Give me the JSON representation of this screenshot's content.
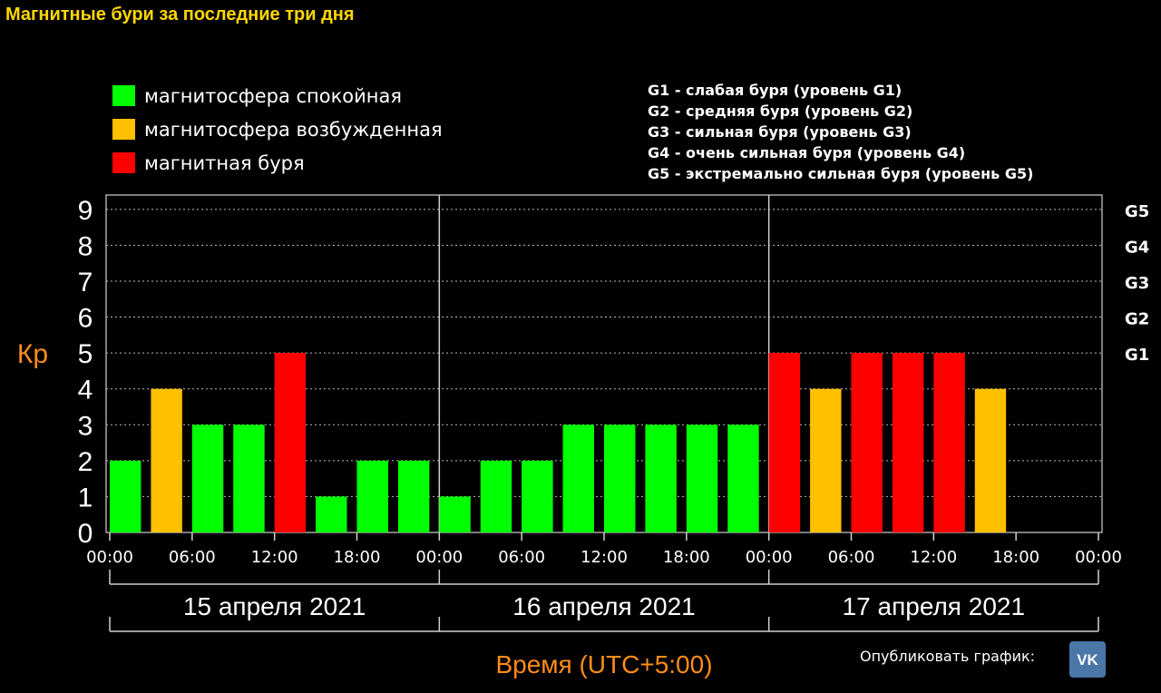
{
  "title": "Магнитные бури за последние три дня",
  "legend": [
    {
      "label": "магнитосфера спокойная",
      "color": "#00ff00"
    },
    {
      "label": "магнитосфера возбужденная",
      "color": "#ffc000"
    },
    {
      "label": "магнитная буря",
      "color": "#ff0000"
    }
  ],
  "storm_levels": [
    "G1 - слабая буря (уровень G1)",
    "G2 - средняя буря (уровень G2)",
    "G3 - сильная буря (уровень G3)",
    "G4 - очень сильная буря (уровень G4)",
    "G5 - экстремально сильная буря (уровень G5)"
  ],
  "publish": {
    "label": "Опубликовать график:",
    "icon": "vk-icon"
  },
  "chart_data": {
    "type": "bar",
    "ylabel": "Кр",
    "xlabel": "Время (UTC+5:00)",
    "ylim": [
      0,
      9
    ],
    "y_ticks": [
      "0",
      "1",
      "2",
      "3",
      "4",
      "5",
      "6",
      "7",
      "8",
      "9"
    ],
    "g_levels": [
      {
        "label": "G1",
        "kp": 5
      },
      {
        "label": "G2",
        "kp": 6
      },
      {
        "label": "G3",
        "kp": 7
      },
      {
        "label": "G4",
        "kp": 8
      },
      {
        "label": "G5",
        "kp": 9
      }
    ],
    "x_ticks": [
      "00:00",
      "06:00",
      "12:00",
      "18:00",
      "00:00",
      "06:00",
      "12:00",
      "18:00",
      "00:00",
      "06:00",
      "12:00",
      "18:00",
      "00:00"
    ],
    "days": [
      "15 апреля 2021",
      "16 апреля 2021",
      "17 апреля 2021"
    ],
    "interval_hours": 3,
    "values": [
      2,
      4,
      3,
      3,
      5,
      1,
      2,
      2,
      1,
      2,
      2,
      3,
      3,
      3,
      3,
      3,
      5,
      4,
      5,
      5,
      5,
      4
    ],
    "colors": {
      "quiet": "#00ff00",
      "active": "#ffc000",
      "storm": "#ff0000"
    },
    "grid": true
  }
}
